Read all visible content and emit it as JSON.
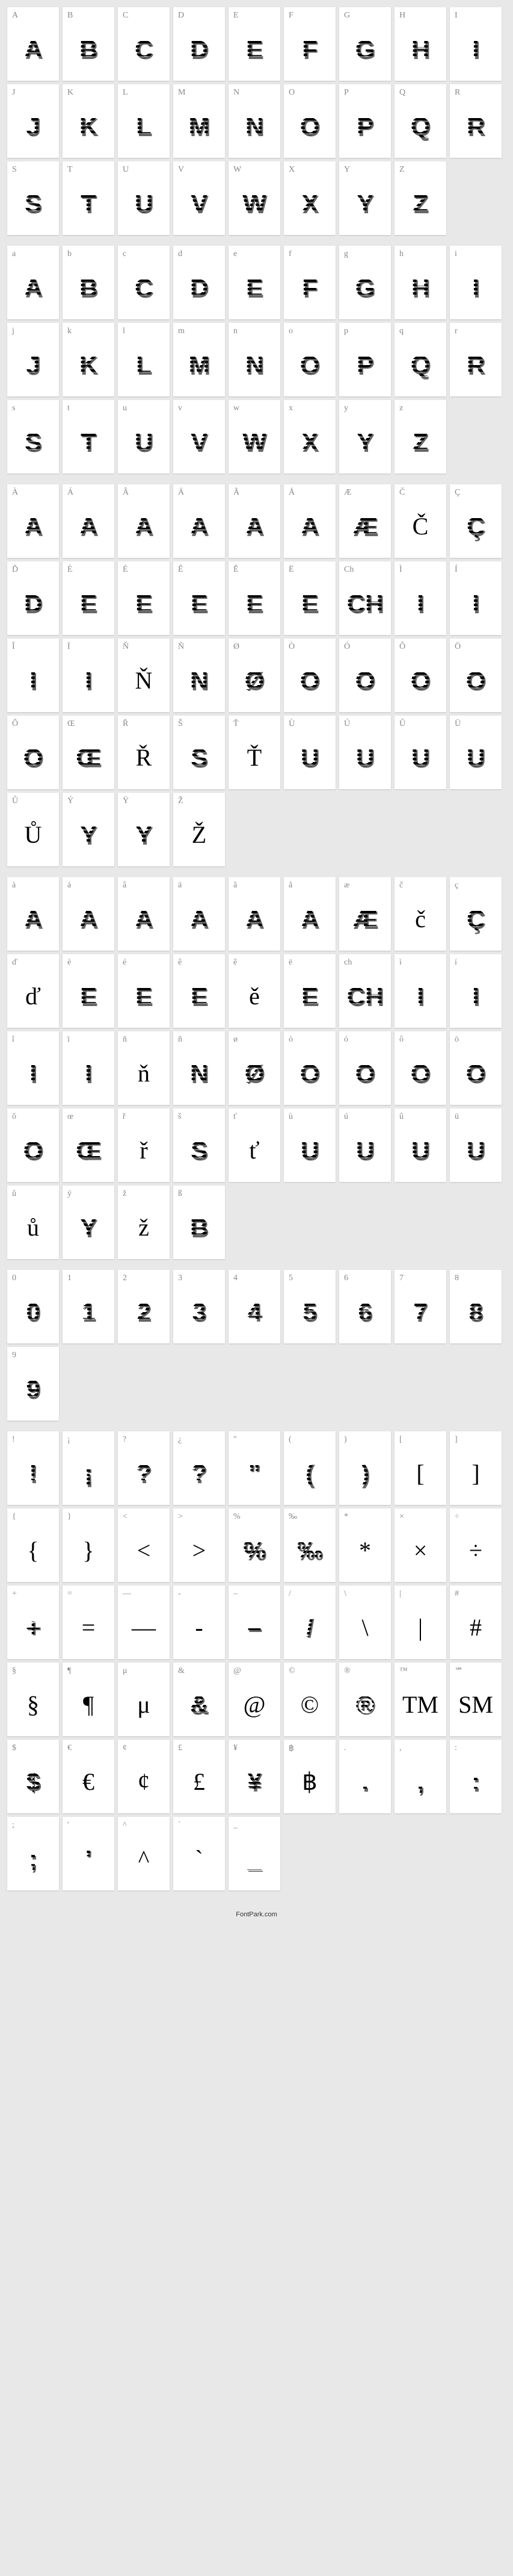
{
  "footer": "FontPark.com",
  "cell_bg": "#ffffff",
  "page_bg": "#e8e8e8",
  "label_color": "#888888",
  "glyph_color": "#000000",
  "sections": [
    {
      "name": "uppercase",
      "cells": [
        {
          "label": "A",
          "glyph": "A"
        },
        {
          "label": "B",
          "glyph": "B"
        },
        {
          "label": "C",
          "glyph": "C"
        },
        {
          "label": "D",
          "glyph": "D"
        },
        {
          "label": "E",
          "glyph": "E"
        },
        {
          "label": "F",
          "glyph": "F"
        },
        {
          "label": "G",
          "glyph": "G"
        },
        {
          "label": "H",
          "glyph": "H"
        },
        {
          "label": "I",
          "glyph": "I"
        },
        {
          "label": "J",
          "glyph": "J"
        },
        {
          "label": "K",
          "glyph": "K"
        },
        {
          "label": "L",
          "glyph": "L"
        },
        {
          "label": "M",
          "glyph": "M"
        },
        {
          "label": "N",
          "glyph": "N"
        },
        {
          "label": "O",
          "glyph": "O"
        },
        {
          "label": "P",
          "glyph": "P"
        },
        {
          "label": "Q",
          "glyph": "Q"
        },
        {
          "label": "R",
          "glyph": "R"
        },
        {
          "label": "S",
          "glyph": "S"
        },
        {
          "label": "T",
          "glyph": "T"
        },
        {
          "label": "U",
          "glyph": "U"
        },
        {
          "label": "V",
          "glyph": "V"
        },
        {
          "label": "W",
          "glyph": "W"
        },
        {
          "label": "X",
          "glyph": "X"
        },
        {
          "label": "Y",
          "glyph": "Y"
        },
        {
          "label": "Z",
          "glyph": "Z"
        }
      ]
    },
    {
      "name": "lowercase",
      "cells": [
        {
          "label": "a",
          "glyph": "A"
        },
        {
          "label": "b",
          "glyph": "B"
        },
        {
          "label": "c",
          "glyph": "C"
        },
        {
          "label": "d",
          "glyph": "D"
        },
        {
          "label": "e",
          "glyph": "E"
        },
        {
          "label": "f",
          "glyph": "F"
        },
        {
          "label": "g",
          "glyph": "G"
        },
        {
          "label": "h",
          "glyph": "H"
        },
        {
          "label": "i",
          "glyph": "I"
        },
        {
          "label": "j",
          "glyph": "J"
        },
        {
          "label": "k",
          "glyph": "K"
        },
        {
          "label": "l",
          "glyph": "L"
        },
        {
          "label": "m",
          "glyph": "M"
        },
        {
          "label": "n",
          "glyph": "N"
        },
        {
          "label": "o",
          "glyph": "O"
        },
        {
          "label": "p",
          "glyph": "P"
        },
        {
          "label": "q",
          "glyph": "Q"
        },
        {
          "label": "r",
          "glyph": "R"
        },
        {
          "label": "s",
          "glyph": "S"
        },
        {
          "label": "t",
          "glyph": "T"
        },
        {
          "label": "u",
          "glyph": "U"
        },
        {
          "label": "v",
          "glyph": "V"
        },
        {
          "label": "w",
          "glyph": "W"
        },
        {
          "label": "x",
          "glyph": "X"
        },
        {
          "label": "y",
          "glyph": "Y"
        },
        {
          "label": "z",
          "glyph": "Z"
        }
      ]
    },
    {
      "name": "accented-upper",
      "cells": [
        {
          "label": "À",
          "glyph": "A"
        },
        {
          "label": "Á",
          "glyph": "A"
        },
        {
          "label": "Â",
          "glyph": "A"
        },
        {
          "label": "Ä",
          "glyph": "A"
        },
        {
          "label": "Ã",
          "glyph": "A"
        },
        {
          "label": "Å",
          "glyph": "A"
        },
        {
          "label": "Æ",
          "glyph": "Æ"
        },
        {
          "label": "Č",
          "glyph": "Č",
          "plain": true
        },
        {
          "label": "Ç",
          "glyph": "Ç"
        },
        {
          "label": "Ď",
          "glyph": "D"
        },
        {
          "label": "È",
          "glyph": "E"
        },
        {
          "label": "É",
          "glyph": "E"
        },
        {
          "label": "Ê",
          "glyph": "E"
        },
        {
          "label": "Ě",
          "glyph": "E"
        },
        {
          "label": "Ë",
          "glyph": "E"
        },
        {
          "label": "Ch",
          "glyph": "CH"
        },
        {
          "label": "Ì",
          "glyph": "I"
        },
        {
          "label": "Í",
          "glyph": "I"
        },
        {
          "label": "Î",
          "glyph": "I"
        },
        {
          "label": "Ï",
          "glyph": "I"
        },
        {
          "label": "Ň",
          "glyph": "Ň",
          "plain": true
        },
        {
          "label": "Ñ",
          "glyph": "N"
        },
        {
          "label": "Ø",
          "glyph": "Ø"
        },
        {
          "label": "Ò",
          "glyph": "O"
        },
        {
          "label": "Ó",
          "glyph": "O"
        },
        {
          "label": "Ô",
          "glyph": "O"
        },
        {
          "label": "Ö",
          "glyph": "O"
        },
        {
          "label": "Õ",
          "glyph": "O"
        },
        {
          "label": "Œ",
          "glyph": "Œ"
        },
        {
          "label": "Ř",
          "glyph": "Ř",
          "plain": true
        },
        {
          "label": "Š",
          "glyph": "S"
        },
        {
          "label": "Ť",
          "glyph": "Ť",
          "plain": true
        },
        {
          "label": "Ù",
          "glyph": "U"
        },
        {
          "label": "Ú",
          "glyph": "U"
        },
        {
          "label": "Û",
          "glyph": "U"
        },
        {
          "label": "Ü",
          "glyph": "U"
        },
        {
          "label": "Ů",
          "glyph": "Ů",
          "plain": true
        },
        {
          "label": "Ý",
          "glyph": "Y"
        },
        {
          "label": "Ÿ",
          "glyph": "Y"
        },
        {
          "label": "Ž",
          "glyph": "Ž",
          "plain": true
        }
      ]
    },
    {
      "name": "accented-lower",
      "cells": [
        {
          "label": "à",
          "glyph": "A"
        },
        {
          "label": "á",
          "glyph": "A"
        },
        {
          "label": "â",
          "glyph": "A"
        },
        {
          "label": "ä",
          "glyph": "A"
        },
        {
          "label": "ã",
          "glyph": "A"
        },
        {
          "label": "å",
          "glyph": "A"
        },
        {
          "label": "æ",
          "glyph": "Æ"
        },
        {
          "label": "č",
          "glyph": "č",
          "plain": true
        },
        {
          "label": "ç",
          "glyph": "Ç"
        },
        {
          "label": "ď",
          "glyph": "ď",
          "plain": true
        },
        {
          "label": "è",
          "glyph": "E"
        },
        {
          "label": "é",
          "glyph": "E"
        },
        {
          "label": "ê",
          "glyph": "E"
        },
        {
          "label": "ě",
          "glyph": "ě",
          "plain": true
        },
        {
          "label": "ë",
          "glyph": "E"
        },
        {
          "label": "ch",
          "glyph": "CH"
        },
        {
          "label": "ì",
          "glyph": "I"
        },
        {
          "label": "í",
          "glyph": "I"
        },
        {
          "label": "î",
          "glyph": "I"
        },
        {
          "label": "ï",
          "glyph": "I"
        },
        {
          "label": "ň",
          "glyph": "ň",
          "plain": true
        },
        {
          "label": "ñ",
          "glyph": "N"
        },
        {
          "label": "ø",
          "glyph": "Ø"
        },
        {
          "label": "ò",
          "glyph": "O"
        },
        {
          "label": "ó",
          "glyph": "O"
        },
        {
          "label": "ô",
          "glyph": "O"
        },
        {
          "label": "ö",
          "glyph": "O"
        },
        {
          "label": "õ",
          "glyph": "O"
        },
        {
          "label": "œ",
          "glyph": "Œ"
        },
        {
          "label": "ř",
          "glyph": "ř",
          "plain": true
        },
        {
          "label": "š",
          "glyph": "S"
        },
        {
          "label": "ť",
          "glyph": "ť",
          "plain": true
        },
        {
          "label": "ù",
          "glyph": "U"
        },
        {
          "label": "ú",
          "glyph": "U"
        },
        {
          "label": "û",
          "glyph": "U"
        },
        {
          "label": "ü",
          "glyph": "U"
        },
        {
          "label": "ů",
          "glyph": "ů",
          "plain": true
        },
        {
          "label": "ý",
          "glyph": "Y"
        },
        {
          "label": "ž",
          "glyph": "ž",
          "plain": true
        },
        {
          "label": "ß",
          "glyph": "B"
        }
      ]
    },
    {
      "name": "digits",
      "cells": [
        {
          "label": "0",
          "glyph": "0"
        },
        {
          "label": "1",
          "glyph": "1"
        },
        {
          "label": "2",
          "glyph": "2"
        },
        {
          "label": "3",
          "glyph": "3"
        },
        {
          "label": "4",
          "glyph": "4"
        },
        {
          "label": "5",
          "glyph": "5"
        },
        {
          "label": "6",
          "glyph": "6"
        },
        {
          "label": "7",
          "glyph": "7"
        },
        {
          "label": "8",
          "glyph": "8"
        },
        {
          "label": "9",
          "glyph": "9"
        }
      ]
    },
    {
      "name": "symbols",
      "cells": [
        {
          "label": "!",
          "glyph": "!"
        },
        {
          "label": "¡",
          "glyph": "¡"
        },
        {
          "label": "?",
          "glyph": "?"
        },
        {
          "label": "¿",
          "glyph": "?"
        },
        {
          "label": "\"",
          "glyph": "\""
        },
        {
          "label": "(",
          "glyph": "("
        },
        {
          "label": ")",
          "glyph": ")"
        },
        {
          "label": "[",
          "glyph": "[",
          "plain": true
        },
        {
          "label": "]",
          "glyph": "]",
          "plain": true
        },
        {
          "label": "{",
          "glyph": "{",
          "plain": true
        },
        {
          "label": "}",
          "glyph": "}",
          "plain": true
        },
        {
          "label": "<",
          "glyph": "<",
          "plain": true
        },
        {
          "label": ">",
          "glyph": ">",
          "plain": true
        },
        {
          "label": "%",
          "glyph": "%"
        },
        {
          "label": "‰",
          "glyph": "‰"
        },
        {
          "label": "*",
          "glyph": "*",
          "plain": true
        },
        {
          "label": "×",
          "glyph": "×",
          "plain": true
        },
        {
          "label": "÷",
          "glyph": "÷",
          "plain": true
        },
        {
          "label": "+",
          "glyph": "+"
        },
        {
          "label": "=",
          "glyph": "=",
          "plain": true
        },
        {
          "label": "—",
          "glyph": "—",
          "plain": true
        },
        {
          "label": "-",
          "glyph": "-",
          "plain": true
        },
        {
          "label": "–",
          "glyph": "–"
        },
        {
          "label": "/",
          "glyph": "/"
        },
        {
          "label": "\\",
          "glyph": "\\",
          "plain": true
        },
        {
          "label": "|",
          "glyph": "|",
          "plain": true
        },
        {
          "label": "#",
          "glyph": "#",
          "plain": true
        },
        {
          "label": "§",
          "glyph": "§",
          "plain": true
        },
        {
          "label": "¶",
          "glyph": "¶",
          "plain": true
        },
        {
          "label": "μ",
          "glyph": "μ",
          "plain": true
        },
        {
          "label": "&",
          "glyph": "&"
        },
        {
          "label": "@",
          "glyph": "@",
          "plain": true
        },
        {
          "label": "©",
          "glyph": "©",
          "plain": true
        },
        {
          "label": "®",
          "glyph": "®"
        },
        {
          "label": "™",
          "glyph": "TM",
          "plain": true
        },
        {
          "label": "℠",
          "glyph": "SM",
          "plain": true
        },
        {
          "label": "$",
          "glyph": "$"
        },
        {
          "label": "€",
          "glyph": "€",
          "plain": true
        },
        {
          "label": "¢",
          "glyph": "¢",
          "plain": true
        },
        {
          "label": "£",
          "glyph": "£",
          "plain": true
        },
        {
          "label": "¥",
          "glyph": "¥"
        },
        {
          "label": "฿",
          "glyph": "฿",
          "plain": true
        },
        {
          "label": ".",
          "glyph": "."
        },
        {
          "label": ",",
          "glyph": ","
        },
        {
          "label": ":",
          "glyph": ":"
        },
        {
          "label": ";",
          "glyph": ";"
        },
        {
          "label": "'",
          "glyph": "'"
        },
        {
          "label": "^",
          "glyph": "^",
          "plain": true
        },
        {
          "label": "`",
          "glyph": "`",
          "plain": true
        },
        {
          "label": "_",
          "glyph": "_"
        }
      ]
    }
  ]
}
